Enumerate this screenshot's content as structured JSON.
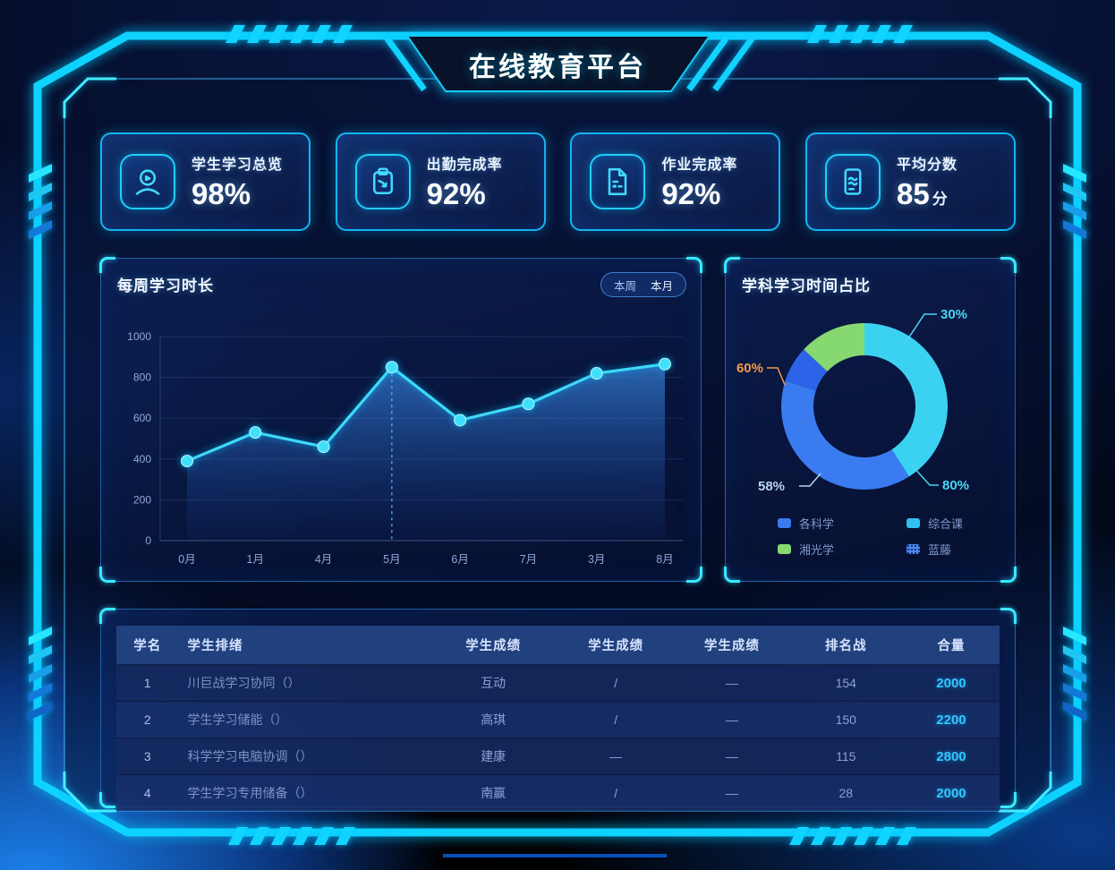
{
  "title": "在线教育平台",
  "colors": {
    "accent": "#00d9ff",
    "line": "#3fd9f8",
    "orange": "#f59a4a",
    "panel_border": "#3caaff"
  },
  "stats": [
    {
      "label": "学生学习总览",
      "value": "98%",
      "suffix": "",
      "icon": "user-icon"
    },
    {
      "label": "出勤完成率",
      "value": "92%",
      "suffix": "",
      "icon": "clipboard-icon"
    },
    {
      "label": "作业完成率",
      "value": "92%",
      "suffix": "",
      "icon": "homework-doc-icon"
    },
    {
      "label": "平均分数",
      "value": "85",
      "suffix": "分",
      "icon": "score-sheet-icon"
    }
  ],
  "line_panel": {
    "title": "每周学习时长",
    "toggle": [
      {
        "label": "本周"
      },
      {
        "label": "本月"
      }
    ]
  },
  "donut_panel": {
    "title": "学科学习时间占比"
  },
  "chart_data": [
    {
      "type": "line",
      "title": "每周学习时长",
      "x": [
        "0月",
        "1月",
        "4月",
        "5月",
        "6月",
        "7月",
        "3月",
        "8月"
      ],
      "series": [
        {
          "name": "学习时长",
          "values": [
            390,
            530,
            460,
            850,
            590,
            670,
            820,
            865
          ]
        }
      ],
      "ylim": [
        0,
        1000
      ],
      "yticks": [
        0,
        200,
        400,
        600,
        800,
        1000
      ],
      "grid": true,
      "area": true,
      "marker": "circle",
      "highlight_x": "5月",
      "line_color": "#3fd9f8"
    },
    {
      "type": "pie",
      "donut": true,
      "title": "学科学习时间占比",
      "segments": [
        {
          "label": "综合课",
          "value": 41,
          "color": "#3bd2f2"
        },
        {
          "label": "各科学",
          "value": 39,
          "color": "#3a7bf0"
        },
        {
          "label": "蓝藤",
          "value": 7,
          "color": "#2c63e8"
        },
        {
          "label": "湘光学",
          "value": 13,
          "color": "#86d971"
        }
      ],
      "callouts": [
        {
          "text": "30%",
          "color": "#49d6f5"
        },
        {
          "text": "60%",
          "color": "#f59a4a"
        },
        {
          "text": "58%",
          "color": "#b7d3f5"
        },
        {
          "text": "80%",
          "color": "#49d6f5"
        }
      ],
      "legend": [
        {
          "label": "各科学",
          "color": "#3a7bf0",
          "style": "solid"
        },
        {
          "label": "综合课",
          "color": "#2fc2f0",
          "style": "solid"
        },
        {
          "label": "湘光学",
          "color": "#86d971",
          "style": "solid"
        },
        {
          "label": "蓝藤",
          "color": "#4b86f0",
          "style": "dotted"
        }
      ],
      "legend_position": "bottom"
    }
  ],
  "table": {
    "columns": [
      "学名",
      "学生排绪",
      "学生成绩",
      "学生成绩",
      "学生成绩",
      "排名战",
      "合量"
    ],
    "rows": [
      [
        "1",
        "川巨战学习协同（）",
        "互动",
        "/",
        "—",
        "154",
        "2000"
      ],
      [
        "2",
        "学生学习储能（）",
        "高琪",
        "/",
        "—",
        "150",
        "2200"
      ],
      [
        "3",
        "科学学习电脑协调（）",
        "建康",
        "—",
        "—",
        "115",
        "2800"
      ],
      [
        "4",
        "学生学习专用储备（）",
        "南赢",
        "/",
        "—",
        "28",
        "2000"
      ]
    ]
  }
}
